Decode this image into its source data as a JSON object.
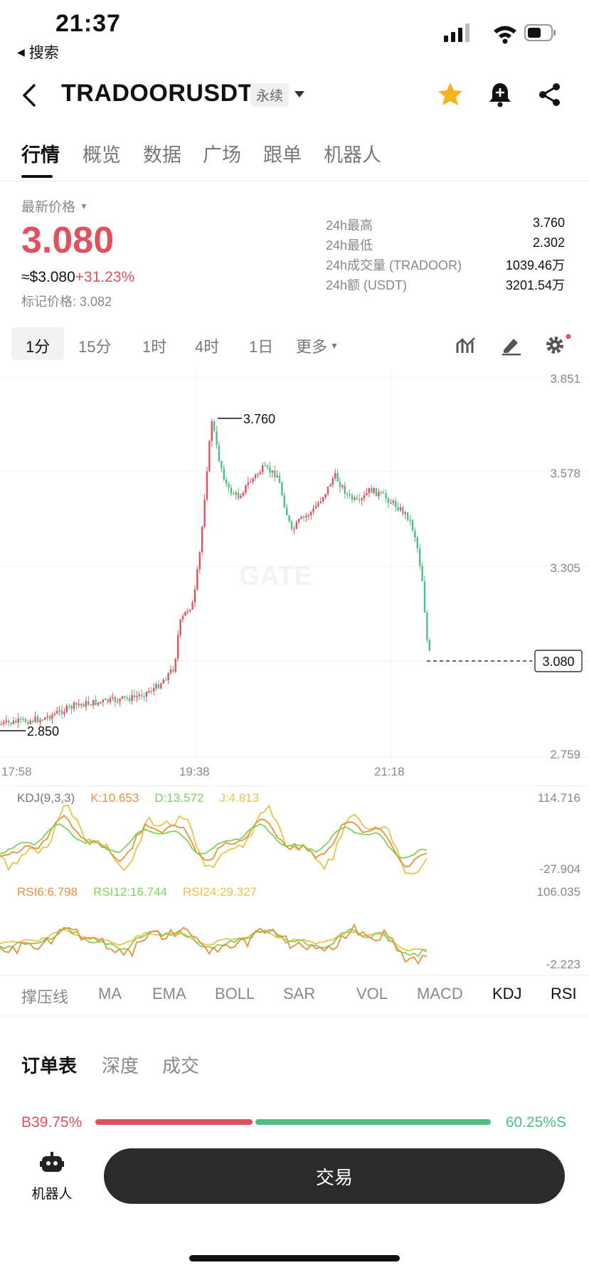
{
  "status_bar": {
    "time": "21:37",
    "back_app": "搜索"
  },
  "header": {
    "symbol": "TRADOORUSDT",
    "badge": "永续"
  },
  "tabs": [
    "行情",
    "概览",
    "数据",
    "广场",
    "跟单",
    "机器人"
  ],
  "price": {
    "label": "最新价格",
    "last": "3.080",
    "usd": "≈$3.080",
    "change": "+31.23%",
    "mark": "标记价格: 3.082"
  },
  "stats": [
    {
      "label": "24h最高",
      "value": "3.760"
    },
    {
      "label": "24h最低",
      "value": "2.302"
    },
    {
      "label": "24h成交量 (TRADOOR)",
      "value": "1039.46万"
    },
    {
      "label": "24h额 (USDT)",
      "value": "3201.54万"
    }
  ],
  "timeframes": [
    "1分",
    "15分",
    "1时",
    "4时",
    "1日",
    "更多"
  ],
  "chart": {
    "price_axis": [
      "3.851",
      "3.578",
      "3.305",
      "3.080",
      "2.759"
    ],
    "high_label": "3.760",
    "low_label": "2.850",
    "current_tag": "3.080",
    "time_axis": [
      "17:58",
      "19:38",
      "21:18"
    ]
  },
  "kdj": {
    "title": "KDJ(9,3,3)",
    "k": "K:10.653",
    "d": "D:13.572",
    "j": "J:4.813",
    "max": "114.716",
    "min": "-27.904"
  },
  "rsi": {
    "r6": "RSI6:6.798",
    "r12": "RSI12:16.744",
    "r24": "RSI24:29.327",
    "max": "106.035",
    "min": "-2.223"
  },
  "indicators": [
    "撑压线",
    "MA",
    "EMA",
    "BOLL",
    "SAR",
    "VOL",
    "MACD",
    "KDJ",
    "RSI"
  ],
  "orderbook": {
    "tabs": [
      "订单表",
      "深度",
      "成交"
    ],
    "buy_label": "B",
    "buy_pct": "39.75%",
    "sell_pct": "60.25%",
    "sell_label": "S",
    "buy_ratio": 0.3975
  },
  "bottom": {
    "robot_label": "机器人",
    "trade_label": "交易"
  },
  "colors": {
    "up": "#e0505d",
    "down": "#4fbe84",
    "k_line": "#e6913d",
    "d_line": "#7dd35a",
    "j_line": "#e9c34a"
  }
}
